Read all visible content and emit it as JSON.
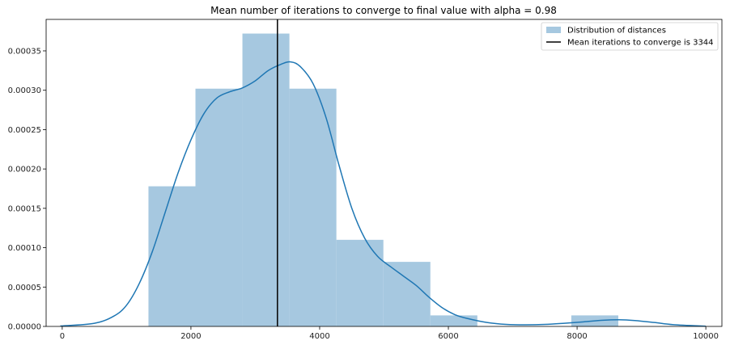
{
  "chart_data": {
    "type": "bar",
    "title": "Mean number of iterations to converge to final value with alpha = 0.98",
    "xlabel": "",
    "ylabel": "",
    "xlim": [
      -250,
      10250
    ],
    "ylim": [
      0,
      0.00039
    ],
    "grid": false,
    "legend_position": "top-right",
    "x_ticks": [
      0,
      2000,
      4000,
      6000,
      8000,
      10000
    ],
    "x_tick_labels": [
      "0",
      "2000",
      "4000",
      "6000",
      "8000",
      "10000"
    ],
    "y_ticks": [
      0,
      5e-05,
      0.0001,
      0.00015,
      0.0002,
      0.00025,
      0.0003,
      0.00035
    ],
    "y_tick_labels": [
      "0.00000",
      "0.00005",
      "0.00010",
      "0.00015",
      "0.00020",
      "0.00025",
      "0.00030",
      "0.00035"
    ],
    "histogram": {
      "name": "Distribution of distances",
      "color": "#a6c8e0",
      "bins": [
        {
          "x0": 1340,
          "x1": 2070,
          "value": 0.000178
        },
        {
          "x0": 2070,
          "x1": 2800,
          "value": 0.000302
        },
        {
          "x0": 2800,
          "x1": 3530,
          "value": 0.000372
        },
        {
          "x0": 3530,
          "x1": 4260,
          "value": 0.000302
        },
        {
          "x0": 4260,
          "x1": 4990,
          "value": 0.00011
        },
        {
          "x0": 4990,
          "x1": 5720,
          "value": 8.2e-05
        },
        {
          "x0": 5720,
          "x1": 6450,
          "value": 1.4e-05
        },
        {
          "x0": 6450,
          "x1": 7180,
          "value": 0
        },
        {
          "x0": 7180,
          "x1": 7910,
          "value": 0
        },
        {
          "x0": 7910,
          "x1": 8640,
          "value": 1.4e-05
        }
      ]
    },
    "kde": {
      "color": "#1f77b4",
      "x": [
        -30,
        500,
        800,
        1000,
        1200,
        1400,
        1600,
        1800,
        2000,
        2200,
        2400,
        2600,
        2800,
        3000,
        3200,
        3400,
        3550,
        3700,
        3900,
        4100,
        4300,
        4500,
        4700,
        4900,
        5100,
        5300,
        5500,
        5700,
        5900,
        6100,
        6300,
        6600,
        6900,
        7200,
        7500,
        7800,
        8100,
        8400,
        8650,
        8900,
        9200,
        9500,
        10000
      ],
      "y": [
        5e-07,
        4e-06,
        1.3e-05,
        2.7e-05,
        5.5e-05,
        9.5e-05,
        0.000145,
        0.000195,
        0.000237,
        0.00027,
        0.00029,
        0.000298,
        0.000303,
        0.000312,
        0.000325,
        0.000333,
        0.000336,
        0.00033,
        0.000308,
        0.000265,
        0.000205,
        0.00015,
        0.000112,
        8.9e-05,
        7.6e-05,
        6.4e-05,
        5.2e-05,
        3.7e-05,
        2.4e-05,
        1.5e-05,
        1e-05,
        5e-06,
        2.5e-06,
        2e-06,
        2.5e-06,
        4e-06,
        5.8e-06,
        7.8e-06,
        8.5e-06,
        7.5e-06,
        5e-06,
        2.2e-06,
        3e-07
      ]
    },
    "mean_line": {
      "name": "Mean iterations to converge is 3344",
      "x": 3344,
      "color": "#000000"
    }
  }
}
